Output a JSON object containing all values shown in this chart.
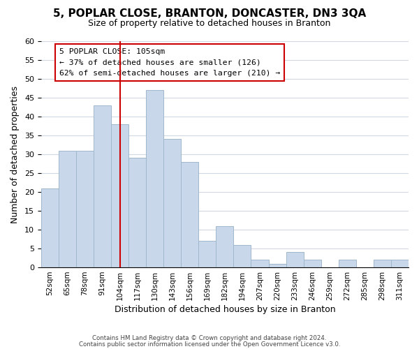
{
  "title": "5, POPLAR CLOSE, BRANTON, DONCASTER, DN3 3QA",
  "subtitle": "Size of property relative to detached houses in Branton",
  "xlabel": "Distribution of detached houses by size in Branton",
  "ylabel": "Number of detached properties",
  "footer_line1": "Contains HM Land Registry data © Crown copyright and database right 2024.",
  "footer_line2": "Contains public sector information licensed under the Open Government Licence v3.0.",
  "bin_labels": [
    "52sqm",
    "65sqm",
    "78sqm",
    "91sqm",
    "104sqm",
    "117sqm",
    "130sqm",
    "143sqm",
    "156sqm",
    "169sqm",
    "182sqm",
    "194sqm",
    "207sqm",
    "220sqm",
    "233sqm",
    "246sqm",
    "259sqm",
    "272sqm",
    "285sqm",
    "298sqm",
    "311sqm"
  ],
  "bar_values": [
    21,
    31,
    31,
    43,
    38,
    29,
    47,
    34,
    28,
    7,
    11,
    6,
    2,
    1,
    4,
    2,
    0,
    2,
    0,
    2,
    2
  ],
  "bar_color": "#c8d8ea",
  "bar_edge_color": "#a0b8cc",
  "vline_x": 4,
  "vline_color": "#cc0000",
  "ylim": [
    0,
    60
  ],
  "yticks": [
    0,
    5,
    10,
    15,
    20,
    25,
    30,
    35,
    40,
    45,
    50,
    55,
    60
  ],
  "annotation_title": "5 POPLAR CLOSE: 105sqm",
  "annotation_line1": "← 37% of detached houses are smaller (126)",
  "annotation_line2": "62% of semi-detached houses are larger (210) →"
}
